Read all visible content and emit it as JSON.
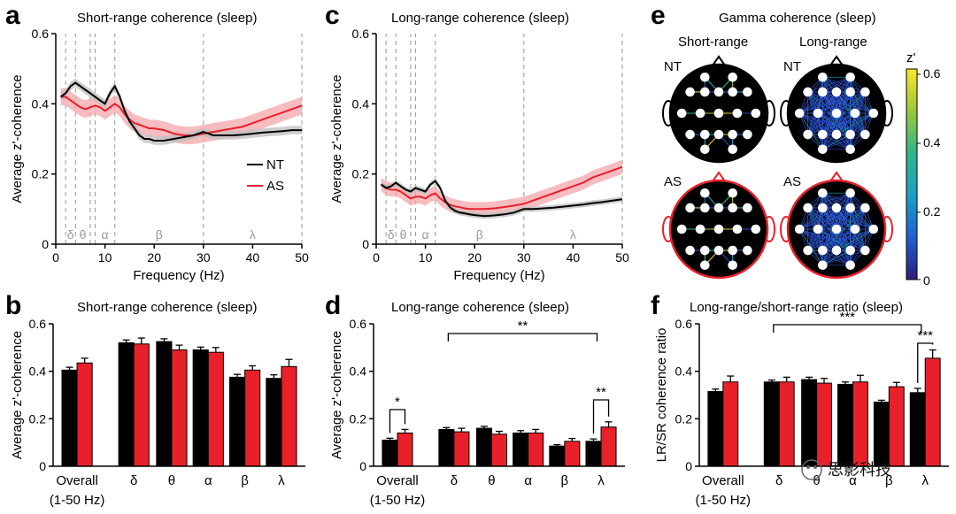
{
  "panels": {
    "a": {
      "letter": "a",
      "title": "Short-range coherence (sleep)"
    },
    "b": {
      "letter": "b",
      "title": "Short-range coherence (sleep)"
    },
    "c": {
      "letter": "c",
      "title": "Long-range coherence (sleep)"
    },
    "d": {
      "letter": "d",
      "title": "Long-range coherence (sleep)"
    },
    "e": {
      "letter": "e",
      "title": "Gamma coherence (sleep)",
      "col_short": "Short-range",
      "col_long": "Long-range",
      "row_nt": "NT",
      "row_as": "AS",
      "colorbar_label": "z'",
      "colorbar_ticks": [
        "0.6",
        "0.4",
        "0.2",
        "0"
      ]
    },
    "f": {
      "letter": "f",
      "title": "Long-range/short-range ratio (sleep)"
    }
  },
  "watermark": "思影科技",
  "colors": {
    "nt": "#000000",
    "as": "#e8202a",
    "as_band": "#f4a6aa",
    "nt_band": "#bdbdbd"
  },
  "chart_data": [
    {
      "id": "a",
      "type": "line",
      "title": "Short-range coherence (sleep)",
      "xlabel": "Frequency (Hz)",
      "ylabel": "Average z'-coherence",
      "xlim": [
        0,
        50
      ],
      "ylim": [
        0,
        0.6
      ],
      "xticks": [
        "0",
        "10",
        "20",
        "30",
        "40",
        "50"
      ],
      "yticks": [
        "0",
        "0.2",
        "0.4",
        "0.6"
      ],
      "band_lines": [
        2,
        4,
        7,
        8,
        12,
        30,
        50
      ],
      "band_labels": [
        {
          "label": "δ",
          "x": 3
        },
        {
          "label": "θ",
          "x": 5.5
        },
        {
          "label": "α",
          "x": 10
        },
        {
          "label": "β",
          "x": 21
        },
        {
          "label": "λ",
          "x": 40
        }
      ],
      "legend": [
        "NT",
        "AS"
      ],
      "legend_position": "center-right",
      "x": [
        1,
        2,
        3,
        4,
        5,
        6,
        7,
        8,
        9,
        10,
        11,
        12,
        13,
        14,
        15,
        16,
        17,
        18,
        19,
        20,
        22,
        24,
        26,
        28,
        30,
        32,
        34,
        36,
        38,
        40,
        42,
        44,
        46,
        48,
        50
      ],
      "series": [
        {
          "name": "NT",
          "values": [
            0.42,
            0.43,
            0.45,
            0.46,
            0.45,
            0.44,
            0.43,
            0.42,
            0.41,
            0.4,
            0.43,
            0.45,
            0.42,
            0.38,
            0.35,
            0.33,
            0.31,
            0.3,
            0.3,
            0.295,
            0.295,
            0.3,
            0.305,
            0.31,
            0.32,
            0.31,
            0.31,
            0.31,
            0.312,
            0.315,
            0.318,
            0.32,
            0.322,
            0.325,
            0.325
          ],
          "band": 0.012
        },
        {
          "name": "AS",
          "values": [
            0.42,
            0.42,
            0.41,
            0.4,
            0.39,
            0.385,
            0.39,
            0.395,
            0.39,
            0.38,
            0.39,
            0.4,
            0.39,
            0.37,
            0.355,
            0.345,
            0.34,
            0.335,
            0.33,
            0.33,
            0.325,
            0.315,
            0.31,
            0.31,
            0.315,
            0.32,
            0.325,
            0.33,
            0.335,
            0.345,
            0.355,
            0.365,
            0.375,
            0.385,
            0.395
          ],
          "band": 0.025
        }
      ]
    },
    {
      "id": "b",
      "type": "bar",
      "title": "Short-range coherence (sleep)",
      "ylabel": "Average z'-coherence",
      "ylim": [
        0,
        0.6
      ],
      "yticks": [
        "0",
        "0.2",
        "0.4",
        "0.6"
      ],
      "categories": [
        "Overall",
        "δ",
        "θ",
        "α",
        "β",
        "λ"
      ],
      "category_sublabel": "(1-50 Hz)",
      "series": [
        {
          "name": "NT",
          "values": [
            0.405,
            0.52,
            0.525,
            0.49,
            0.375,
            0.37
          ],
          "errors": [
            0.012,
            0.012,
            0.012,
            0.012,
            0.012,
            0.015
          ]
        },
        {
          "name": "AS",
          "values": [
            0.435,
            0.515,
            0.49,
            0.48,
            0.405,
            0.42
          ],
          "errors": [
            0.02,
            0.025,
            0.02,
            0.02,
            0.018,
            0.03
          ]
        }
      ]
    },
    {
      "id": "c",
      "type": "line",
      "title": "Long-range coherence (sleep)",
      "xlabel": "Frequency (Hz)",
      "ylabel": "Average z'-coherence",
      "xlim": [
        0,
        50
      ],
      "ylim": [
        0,
        0.6
      ],
      "xticks": [
        "0",
        "10",
        "20",
        "30",
        "40",
        "50"
      ],
      "yticks": [
        "0",
        "0.2",
        "0.4",
        "0.6"
      ],
      "band_lines": [
        2,
        4,
        7,
        8,
        12,
        30,
        50
      ],
      "band_labels": [
        {
          "label": "δ",
          "x": 3
        },
        {
          "label": "θ",
          "x": 5.5
        },
        {
          "label": "α",
          "x": 10
        },
        {
          "label": "β",
          "x": 21
        },
        {
          "label": "λ",
          "x": 40
        }
      ],
      "x": [
        1,
        2,
        3,
        4,
        5,
        6,
        7,
        8,
        9,
        10,
        11,
        12,
        13,
        14,
        15,
        16,
        17,
        18,
        19,
        20,
        22,
        24,
        26,
        28,
        30,
        32,
        34,
        36,
        38,
        40,
        42,
        44,
        46,
        48,
        50
      ],
      "series": [
        {
          "name": "NT",
          "values": [
            0.17,
            0.16,
            0.165,
            0.175,
            0.165,
            0.155,
            0.15,
            0.16,
            0.155,
            0.15,
            0.17,
            0.18,
            0.16,
            0.125,
            0.105,
            0.095,
            0.09,
            0.088,
            0.085,
            0.083,
            0.08,
            0.082,
            0.085,
            0.09,
            0.1,
            0.1,
            0.102,
            0.104,
            0.107,
            0.11,
            0.113,
            0.117,
            0.12,
            0.124,
            0.128
          ],
          "band": 0.008
        },
        {
          "name": "AS",
          "values": [
            0.17,
            0.16,
            0.155,
            0.155,
            0.15,
            0.14,
            0.13,
            0.135,
            0.135,
            0.13,
            0.14,
            0.145,
            0.13,
            0.12,
            0.112,
            0.108,
            0.105,
            0.102,
            0.1,
            0.1,
            0.1,
            0.102,
            0.106,
            0.11,
            0.115,
            0.125,
            0.135,
            0.145,
            0.155,
            0.165,
            0.175,
            0.19,
            0.2,
            0.21,
            0.22
          ],
          "band": 0.02
        }
      ]
    },
    {
      "id": "d",
      "type": "bar",
      "title": "Long-range coherence (sleep)",
      "ylabel": "Average z'-coherence",
      "ylim": [
        0,
        0.6
      ],
      "yticks": [
        "0",
        "0.2",
        "0.4",
        "0.6"
      ],
      "categories": [
        "Overall",
        "δ",
        "θ",
        "α",
        "β",
        "λ"
      ],
      "category_sublabel": "(1-50 Hz)",
      "series": [
        {
          "name": "NT",
          "values": [
            0.11,
            0.155,
            0.16,
            0.14,
            0.085,
            0.105
          ],
          "errors": [
            0.008,
            0.008,
            0.008,
            0.01,
            0.006,
            0.01
          ]
        },
        {
          "name": "AS",
          "values": [
            0.14,
            0.145,
            0.135,
            0.14,
            0.105,
            0.165
          ],
          "errors": [
            0.015,
            0.015,
            0.012,
            0.015,
            0.012,
            0.022
          ]
        }
      ],
      "annotations": [
        "*",
        "**",
        "**"
      ]
    },
    {
      "id": "f",
      "type": "bar",
      "title": "Long-range/short-range ratio (sleep)",
      "ylabel": "LR/SR coherence ratio",
      "ylim": [
        0,
        0.6
      ],
      "yticks": [
        "0",
        "0.2",
        "0.4",
        "0.6"
      ],
      "categories": [
        "Overall",
        "δ",
        "θ",
        "α",
        "β",
        "λ"
      ],
      "category_sublabel": "(1-50 Hz)",
      "series": [
        {
          "name": "NT",
          "values": [
            0.315,
            0.355,
            0.365,
            0.345,
            0.27,
            0.31
          ],
          "errors": [
            0.01,
            0.008,
            0.01,
            0.01,
            0.008,
            0.018
          ]
        },
        {
          "name": "AS",
          "values": [
            0.355,
            0.355,
            0.35,
            0.355,
            0.335,
            0.455
          ],
          "errors": [
            0.025,
            0.02,
            0.02,
            0.028,
            0.018,
            0.035
          ]
        }
      ],
      "annotations": [
        "***",
        "***"
      ]
    }
  ]
}
